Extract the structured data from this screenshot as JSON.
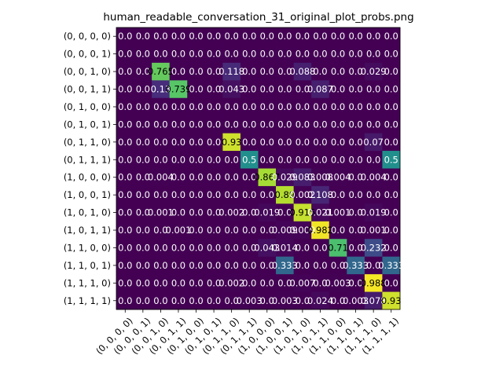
{
  "chart_data": {
    "type": "heatmap",
    "title": "human_readable_conversation_31_original_plot_probs.png",
    "xlabel": "",
    "ylabel": "",
    "colormap": "viridis",
    "vmin": 0,
    "vmax": 1,
    "colorbar": false,
    "grid": false,
    "x_tick_labels": [
      "(0, 0, 0, 0)",
      "(0, 0, 0, 1)",
      "(0, 0, 1, 0)",
      "(0, 0, 1, 1)",
      "(0, 1, 0, 0)",
      "(0, 1, 0, 1)",
      "(0, 1, 1, 0)",
      "(0, 1, 1, 1)",
      "(1, 0, 0, 0)",
      "(1, 0, 0, 1)",
      "(1, 0, 1, 0)",
      "(1, 0, 1, 1)",
      "(1, 1, 0, 0)",
      "(1, 1, 0, 1)",
      "(1, 1, 1, 0)",
      "(1, 1, 1, 1)"
    ],
    "y_tick_labels": [
      "(0, 0, 0, 0)",
      "(0, 0, 0, 1)",
      "(0, 0, 1, 0)",
      "(0, 0, 1, 1)",
      "(0, 1, 0, 0)",
      "(0, 1, 0, 1)",
      "(0, 1, 1, 0)",
      "(0, 1, 1, 1)",
      "(1, 0, 0, 0)",
      "(1, 0, 0, 1)",
      "(1, 0, 1, 0)",
      "(1, 0, 1, 1)",
      "(1, 1, 0, 0)",
      "(1, 1, 0, 1)",
      "(1, 1, 1, 0)",
      "(1, 1, 1, 1)"
    ],
    "values": [
      [
        0,
        0,
        0,
        0,
        0,
        0,
        0,
        0,
        0,
        0,
        0,
        0,
        0,
        0,
        0,
        0
      ],
      [
        0,
        0,
        0,
        0,
        0,
        0,
        0,
        0,
        0,
        0,
        0,
        0,
        0,
        0,
        0,
        0
      ],
      [
        0,
        0,
        0.765,
        0,
        0,
        0,
        0.118,
        0,
        0,
        0,
        0.088,
        0,
        0,
        0,
        0.029,
        0
      ],
      [
        0,
        0,
        0.13,
        0.739,
        0,
        0,
        0.043,
        0,
        0,
        0,
        0,
        0.087,
        0,
        0,
        0,
        0
      ],
      [
        0,
        0,
        0,
        0,
        0,
        0,
        0,
        0,
        0,
        0,
        0,
        0,
        0,
        0,
        0,
        0
      ],
      [
        0,
        0,
        0,
        0,
        0,
        0,
        0,
        0,
        0,
        0,
        0,
        0,
        0,
        0,
        0,
        0
      ],
      [
        0,
        0,
        0,
        0,
        0,
        0,
        0.93,
        0,
        0,
        0,
        0,
        0,
        0,
        0,
        0.07,
        0
      ],
      [
        0,
        0,
        0,
        0,
        0,
        0,
        0,
        0.5,
        0,
        0,
        0,
        0,
        0,
        0,
        0,
        0.5
      ],
      [
        0,
        0,
        0.004,
        0,
        0,
        0,
        0,
        0,
        0.867,
        0.029,
        0.083,
        0.008,
        0.004,
        0,
        0.004,
        0
      ],
      [
        0,
        0,
        0,
        0,
        0,
        0,
        0,
        0,
        0,
        0.89,
        0.002,
        0.108,
        0,
        0,
        0,
        0
      ],
      [
        0,
        0,
        0.001,
        0,
        0,
        0,
        0.002,
        0,
        0.019,
        0,
        0.915,
        0.021,
        0.001,
        0,
        0.019,
        0
      ],
      [
        0,
        0,
        0,
        0.001,
        0,
        0,
        0,
        0,
        0,
        0.009,
        0.009,
        0.982,
        0,
        0,
        0.001,
        0
      ],
      [
        0,
        0,
        0,
        0,
        0,
        0,
        0,
        0,
        0.043,
        0.014,
        0,
        0,
        0.71,
        0,
        0.232,
        0
      ],
      [
        0,
        0,
        0,
        0,
        0,
        0,
        0,
        0,
        0,
        0.333,
        0,
        0,
        0,
        0.333,
        0,
        0.333
      ],
      [
        0,
        0,
        0,
        0,
        0,
        0,
        0.002,
        0,
        0,
        0,
        0.007,
        0,
        0.003,
        0,
        0.988,
        0
      ],
      [
        0,
        0,
        0,
        0,
        0,
        0,
        0,
        0.003,
        0,
        0.003,
        0,
        0.024,
        0,
        0.003,
        0.078,
        0.93
      ]
    ],
    "cell_labels": [
      [
        "0.0",
        "0.0",
        "0.0",
        "0.0",
        "0.0",
        "0.0",
        "0.0",
        "0.0",
        "0.0",
        "0.0",
        "0.0",
        "0.0",
        "0.0",
        "0.0",
        "0.0",
        "0.0"
      ],
      [
        "0.0",
        "0.0",
        "0.0",
        "0.0",
        "0.0",
        "0.0",
        "0.0",
        "0.0",
        "0.0",
        "0.0",
        "0.0",
        "0.0",
        "0.0",
        "0.0",
        "0.0",
        "0.0"
      ],
      [
        "0.0",
        "0.0",
        "0.765",
        "0.0",
        "0.0",
        "0.0",
        "0.118",
        "0.0",
        "0.0",
        "0.0",
        "0.088",
        "0.0",
        "0.0",
        "0.0",
        "0.029",
        "0.0"
      ],
      [
        "0.0",
        "0.0",
        "0.13",
        "0.739",
        "0.0",
        "0.0",
        "0.043",
        "0.0",
        "0.0",
        "0.0",
        "0.0",
        "0.087",
        "0.0",
        "0.0",
        "0.0",
        "0.0"
      ],
      [
        "0.0",
        "0.0",
        "0.0",
        "0.0",
        "0.0",
        "0.0",
        "0.0",
        "0.0",
        "0.0",
        "0.0",
        "0.0",
        "0.0",
        "0.0",
        "0.0",
        "0.0",
        "0.0"
      ],
      [
        "0.0",
        "0.0",
        "0.0",
        "0.0",
        "0.0",
        "0.0",
        "0.0",
        "0.0",
        "0.0",
        "0.0",
        "0.0",
        "0.0",
        "0.0",
        "0.0",
        "0.0",
        "0.0"
      ],
      [
        "0.0",
        "0.0",
        "0.0",
        "0.0",
        "0.0",
        "0.0",
        "0.93",
        "0.0",
        "0.0",
        "0.0",
        "0.0",
        "0.0",
        "0.0",
        "0.0",
        "0.07",
        "0.0"
      ],
      [
        "0.0",
        "0.0",
        "0.0",
        "0.0",
        "0.0",
        "0.0",
        "0.0",
        "0.5",
        "0.0",
        "0.0",
        "0.0",
        "0.0",
        "0.0",
        "0.0",
        "0.0",
        "0.5"
      ],
      [
        "0.0",
        "0.0",
        "0.004",
        "0.0",
        "0.0",
        "0.0",
        "0.0",
        "0.0",
        "0.867",
        "0.029",
        "0.083",
        "0.008",
        "0.004",
        "0.0",
        "0.004",
        "0.0"
      ],
      [
        "0.0",
        "0.0",
        "0.0",
        "0.0",
        "0.0",
        "0.0",
        "0.0",
        "0.0",
        "0.0",
        "0.89",
        "0.002",
        "0.108",
        "0.0",
        "0.0",
        "0.0",
        "0.0"
      ],
      [
        "0.0",
        "0.0",
        "0.001",
        "0.0",
        "0.0",
        "0.0",
        "0.002",
        "0.0",
        "0.019",
        "0.0",
        "0.915",
        "0.021",
        "0.001",
        "0.0",
        "0.019",
        "0.0"
      ],
      [
        "0.0",
        "0.0",
        "0.0",
        "0.001",
        "0.0",
        "0.0",
        "0.0",
        "0.0",
        "0.0",
        "0.009",
        "0.009",
        "0.982",
        "0.0",
        "0.0",
        "0.001",
        "0.0"
      ],
      [
        "0.0",
        "0.0",
        "0.0",
        "0.0",
        "0.0",
        "0.0",
        "0.0",
        "0.0",
        "0.043",
        "0.014",
        "0.0",
        "0.0",
        "0.71",
        "0.0",
        "0.232",
        "0.0"
      ],
      [
        "0.0",
        "0.0",
        "0.0",
        "0.0",
        "0.0",
        "0.0",
        "0.0",
        "0.0",
        "0.0",
        "0.333",
        "0.0",
        "0.0",
        "0.0",
        "0.333",
        "0.0",
        "0.333"
      ],
      [
        "0.0",
        "0.0",
        "0.0",
        "0.0",
        "0.0",
        "0.0",
        "0.002",
        "0.0",
        "0.0",
        "0.0",
        "0.007",
        "0.0",
        "0.003",
        "0.0",
        "0.988",
        "0.0"
      ],
      [
        "0.0",
        "0.0",
        "0.0",
        "0.0",
        "0.0",
        "0.0",
        "0.0",
        "0.003",
        "0.0",
        "0.003",
        "0.0",
        "0.024",
        "0.0",
        "0.003",
        "0.078",
        "0.93"
      ]
    ]
  }
}
